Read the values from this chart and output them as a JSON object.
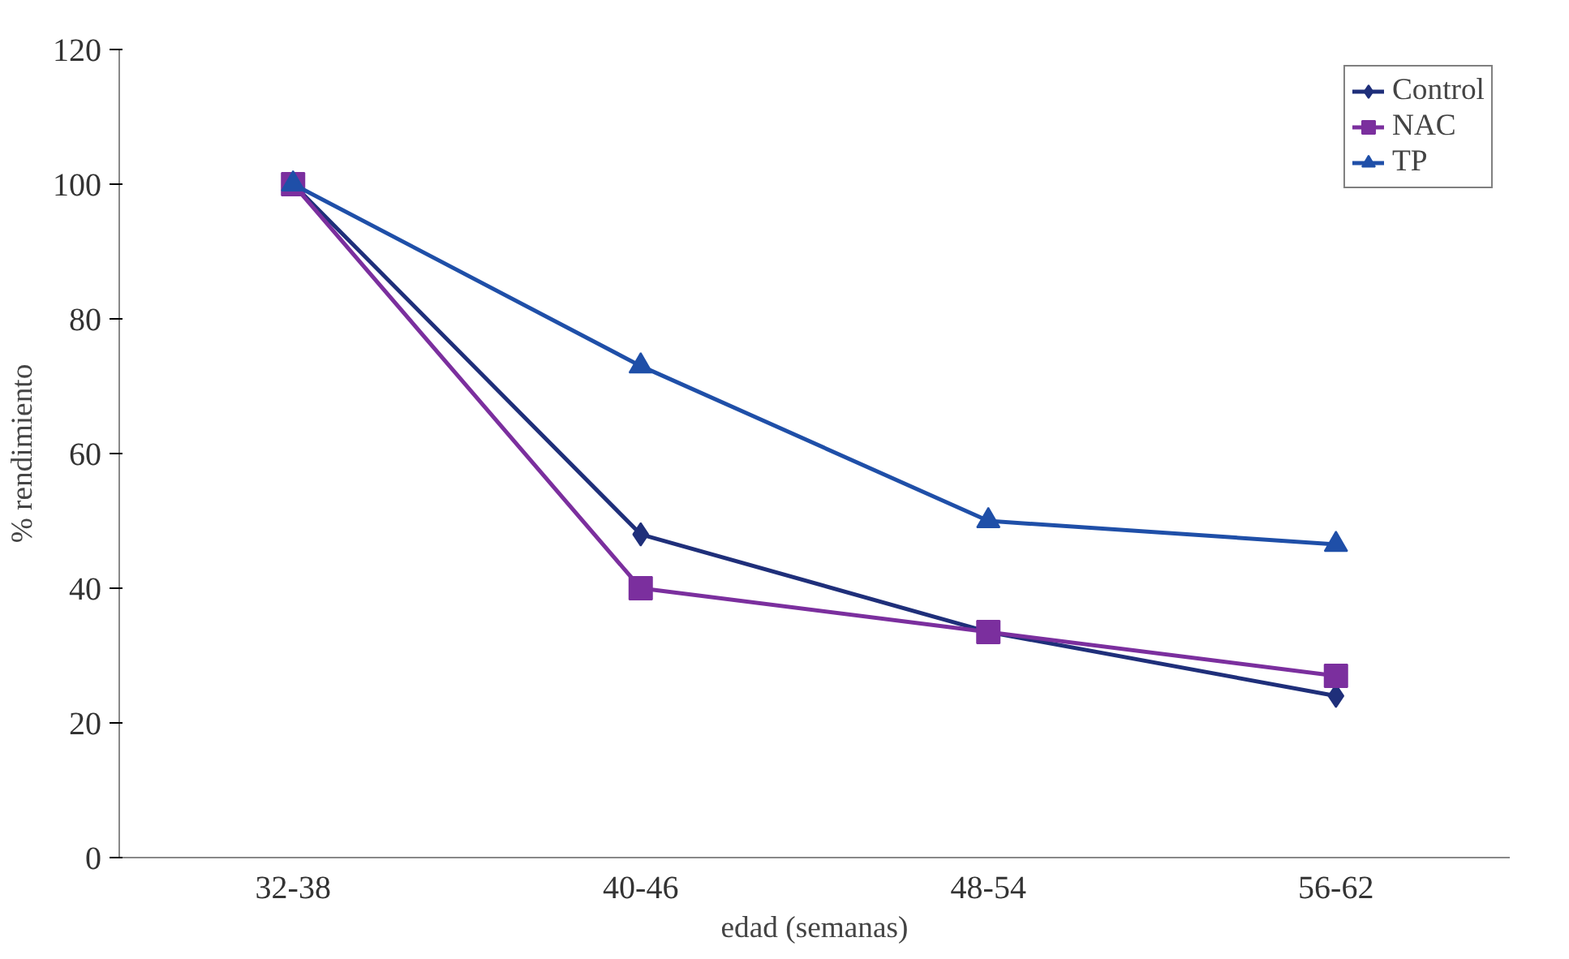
{
  "chart_data": {
    "type": "line",
    "xlabel": "edad (semanas)",
    "ylabel": "% rendimiento",
    "categories": [
      "32-38",
      "40-46",
      "48-54",
      "56-62"
    ],
    "series": [
      {
        "name": "Control",
        "color": "#1f2f7a",
        "marker": "diamond",
        "values": [
          100,
          48,
          33.5,
          24
        ]
      },
      {
        "name": "NAC",
        "color": "#7b2f9e",
        "marker": "square",
        "values": [
          100,
          40,
          33.5,
          27
        ]
      },
      {
        "name": "TP",
        "color": "#1f4fa8",
        "marker": "triangle",
        "values": [
          100,
          73,
          50,
          46.5
        ]
      }
    ],
    "ylim": [
      0,
      120
    ],
    "yticks": [
      0,
      20,
      40,
      60,
      80,
      100,
      120
    ],
    "grid": false,
    "legend": "top right",
    "line_style": "solid"
  }
}
